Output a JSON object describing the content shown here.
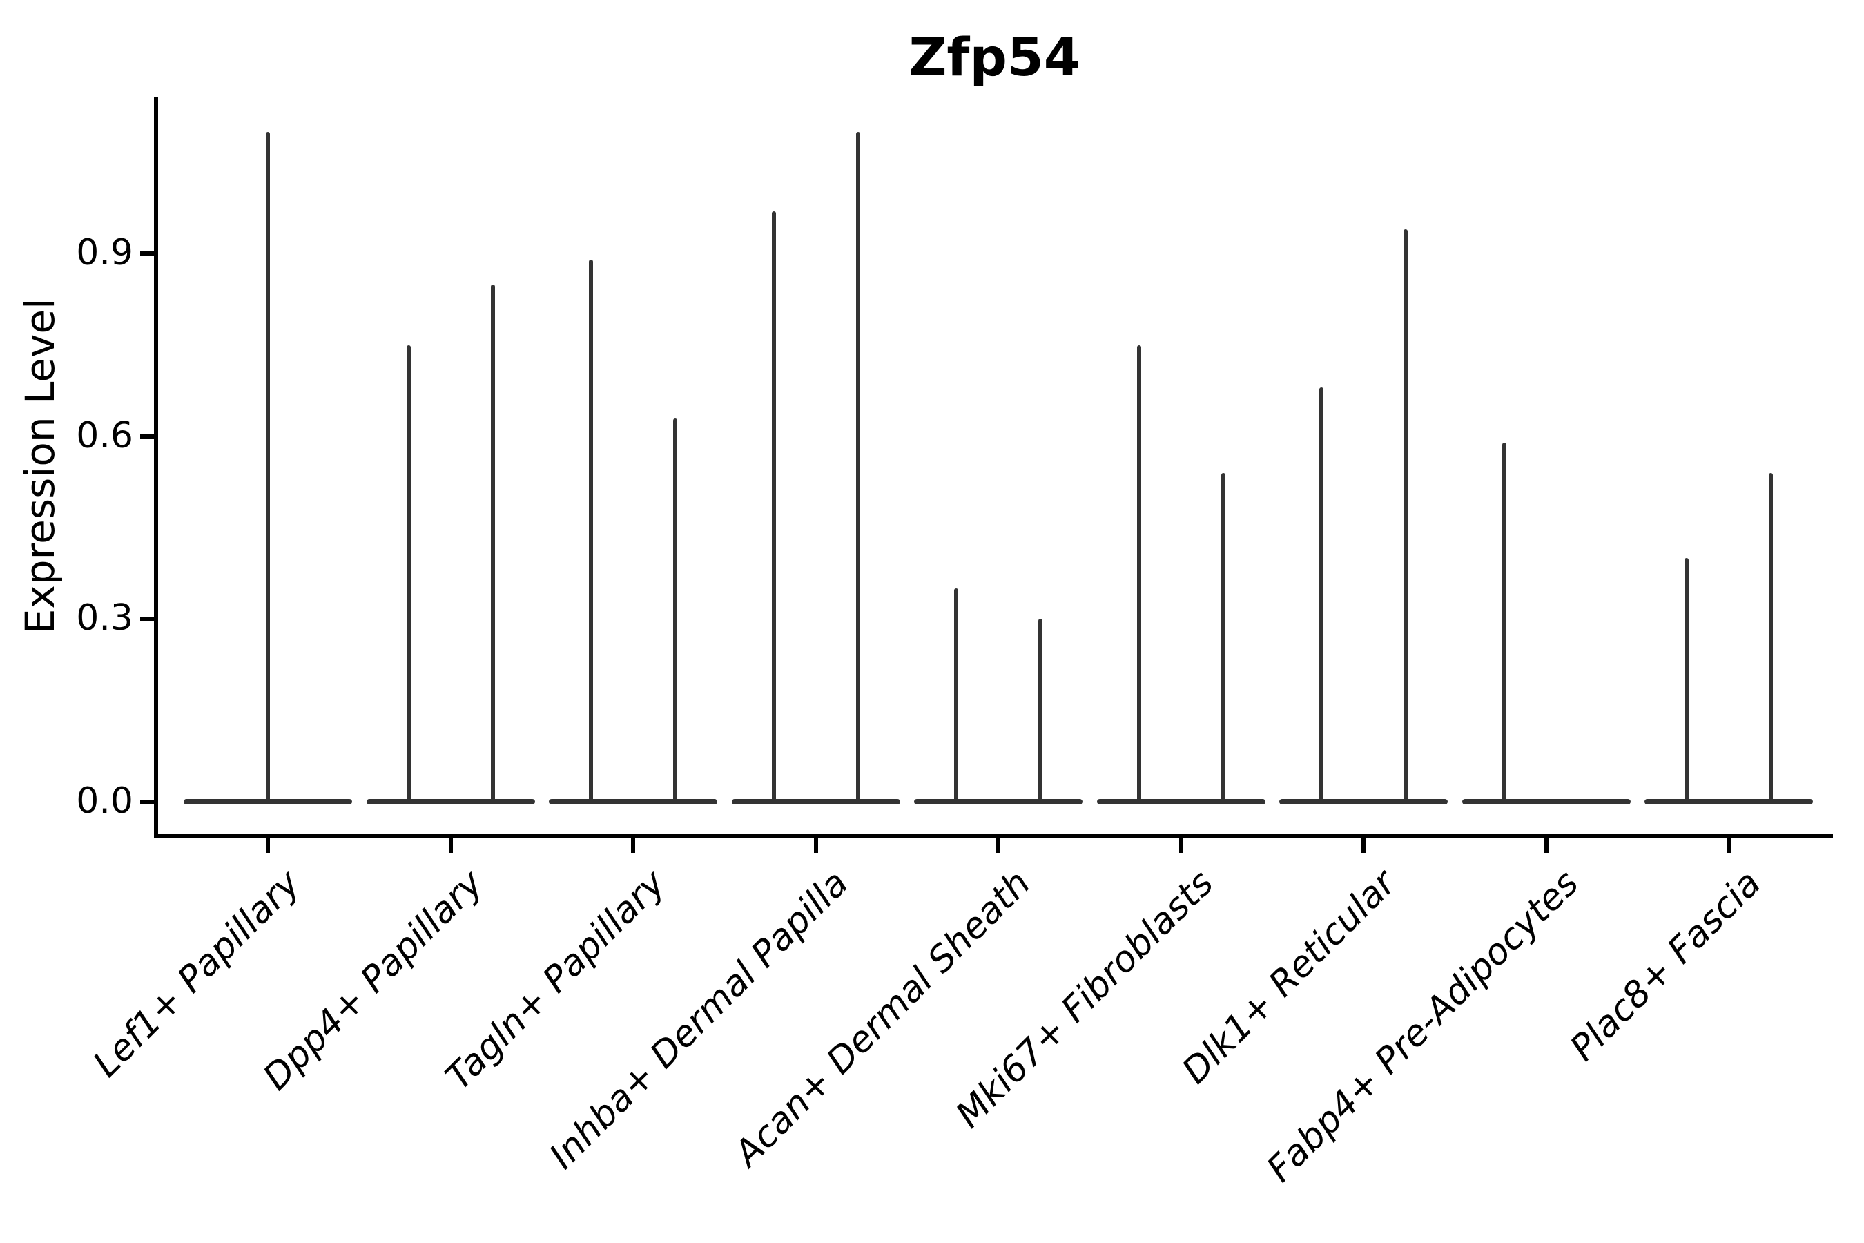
{
  "title": "Zfp54",
  "chart_data": {
    "type": "violin",
    "title": "Zfp54",
    "xlabel": "",
    "ylabel": "Expression Level",
    "ylim": [
      0,
      1.16
    ],
    "grid": false,
    "legend": false,
    "background": "#ffffff",
    "colors": {
      "violin": "#333333",
      "axis": "#000000",
      "text": "#000000"
    },
    "yticks": [
      {
        "value": 0.0,
        "label": "0.0"
      },
      {
        "value": 0.3,
        "label": "0.3"
      },
      {
        "value": 0.6,
        "label": "0.6"
      },
      {
        "value": 0.9,
        "label": "0.9"
      }
    ],
    "categories": [
      "Lef1+ Papillary",
      "Dpp4+ Papillary",
      "Tagln+ Papillary",
      "Inhba+ Dermal Papilla",
      "Acan+ Dermal Sheath",
      "Mki67+ Fibroblasts",
      "Dlk1+ Reticular",
      "Fabp4+ Pre-Adipocytes",
      "Plac8+ Fascia"
    ],
    "series": [
      {
        "category": "Lef1+ Papillary",
        "violins": [
          {
            "position": "center",
            "peak": 1.1
          }
        ]
      },
      {
        "category": "Dpp4+ Papillary",
        "violins": [
          {
            "position": "left",
            "peak": 0.75
          },
          {
            "position": "right",
            "peak": 0.85
          }
        ]
      },
      {
        "category": "Tagln+ Papillary",
        "violins": [
          {
            "position": "left",
            "peak": 0.89
          },
          {
            "position": "right",
            "peak": 0.63
          }
        ]
      },
      {
        "category": "Inhba+ Dermal Papilla",
        "violins": [
          {
            "position": "left",
            "peak": 0.97
          },
          {
            "position": "right",
            "peak": 1.1
          }
        ]
      },
      {
        "category": "Acan+ Dermal Sheath",
        "violins": [
          {
            "position": "left",
            "peak": 0.35
          },
          {
            "position": "right",
            "peak": 0.3
          }
        ]
      },
      {
        "category": "Mki67+ Fibroblasts",
        "violins": [
          {
            "position": "left",
            "peak": 0.75
          },
          {
            "position": "right",
            "peak": 0.54
          }
        ]
      },
      {
        "category": "Dlk1+ Reticular",
        "violins": [
          {
            "position": "left",
            "peak": 0.68
          },
          {
            "position": "right",
            "peak": 0.94
          }
        ]
      },
      {
        "category": "Fabp4+ Pre-Adipocytes",
        "violins": [
          {
            "position": "left",
            "peak": 0.59
          }
        ]
      },
      {
        "category": "Plac8+ Fascia",
        "violins": [
          {
            "position": "left",
            "peak": 0.4
          },
          {
            "position": "right",
            "peak": 0.54
          }
        ]
      }
    ],
    "baseline_value": 0
  }
}
